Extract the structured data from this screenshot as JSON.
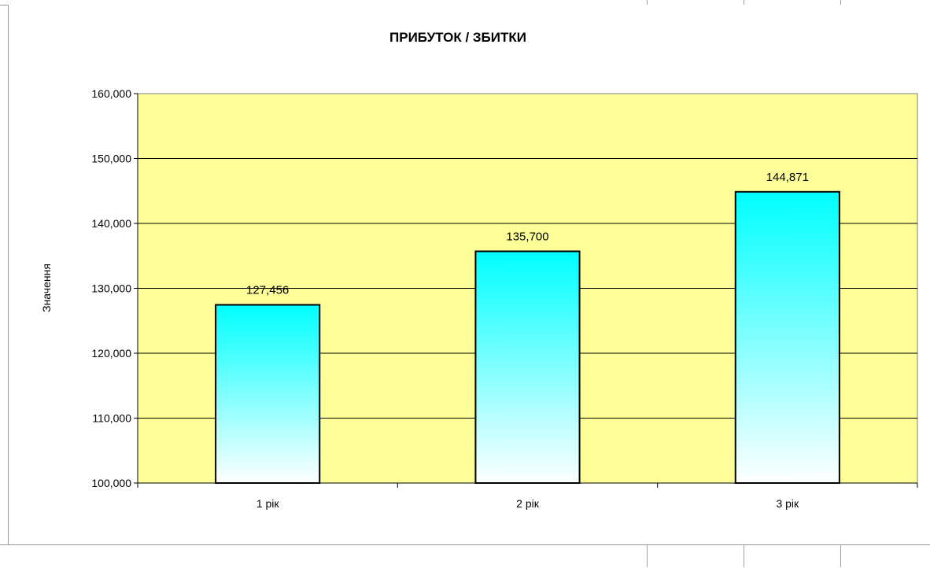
{
  "chart_data": {
    "type": "bar",
    "title": "ПРИБУТОК / ЗБИТКИ",
    "xlabel": "",
    "ylabel": "Значення",
    "categories": [
      "1 рік",
      "2 рік",
      "3 рік"
    ],
    "values": [
      127456,
      135700,
      144871
    ],
    "data_labels": [
      "127,456",
      "135,700",
      "144,871"
    ],
    "ylim": [
      100000,
      160000
    ],
    "yticks": [
      100000,
      110000,
      120000,
      130000,
      140000,
      150000,
      160000
    ],
    "ytick_labels": [
      "100,000",
      "110,000",
      "120,000",
      "130,000",
      "140,000",
      "150,000",
      "160,000"
    ],
    "grid": true,
    "legend": "none",
    "colors": {
      "plot_background": "#ffff99",
      "bar_gradient_top": "#00ffff",
      "bar_gradient_bottom": "#ffffff",
      "bar_border": "#000000",
      "gridline": "#000000"
    }
  }
}
